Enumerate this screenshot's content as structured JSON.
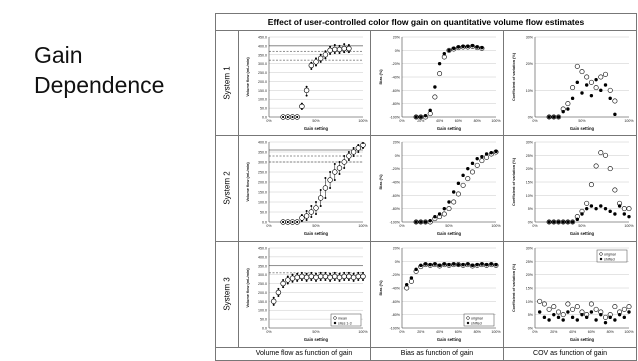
{
  "slide": {
    "title_line1": "Gain",
    "title_line2": "Dependence"
  },
  "figure": {
    "title": "Effect of user-controlled color flow gain on quantitative volume flow estimates",
    "rows": [
      "System 1",
      "System 2",
      "System 3"
    ],
    "columns": [
      "Volume flow as function of gain",
      "Bias as function of gain",
      "COV as function of gain"
    ]
  },
  "chart_data": [
    {
      "id": "s1-volume",
      "type": "scatter",
      "system": "System 1",
      "xlabel": "Gain setting",
      "ylabel": "Volume flow (mL/min)",
      "xlim": [
        0,
        100
      ],
      "xticks": [
        "0%",
        "50%",
        "100%"
      ],
      "ylim": [
        0,
        450
      ],
      "yticks": [
        "0.0",
        "50.0",
        "100.0",
        "150.0",
        "200.0",
        "250.0",
        "300.0",
        "350.0",
        "400.0",
        "450.0"
      ],
      "ref_lines": [
        400,
        370,
        320
      ],
      "x": [
        15,
        20,
        25,
        30,
        35,
        40,
        45,
        50,
        55,
        60,
        65,
        70,
        75,
        80,
        85
      ],
      "series": [
        {
          "name": "mean",
          "values": [
            0,
            0,
            0,
            0,
            60,
            150,
            290,
            310,
            330,
            350,
            375,
            380,
            380,
            385,
            385
          ]
        },
        {
          "name": "sites 1-3",
          "values": [
            0,
            0,
            0,
            0,
            45,
            120,
            270,
            290,
            310,
            330,
            355,
            360,
            360,
            365,
            365
          ]
        },
        {
          "name": "sites 1-3",
          "values": [
            0,
            0,
            0,
            0,
            75,
            170,
            305,
            330,
            350,
            370,
            395,
            405,
            400,
            410,
            405
          ]
        }
      ]
    },
    {
      "id": "s1-bias",
      "type": "scatter",
      "system": "System 1",
      "xlabel": "Gain setting",
      "ylabel": "Bias (%)",
      "xlim": [
        0,
        100
      ],
      "xticks": [
        "0%",
        "20%",
        "40%",
        "60%",
        "80%",
        "100%"
      ],
      "ylim": [
        -100,
        20
      ],
      "yticks": [
        "-100%",
        "-80%",
        "-60%",
        "-40%",
        "-20%",
        "0%",
        "20%"
      ],
      "x": [
        15,
        20,
        25,
        30,
        35,
        40,
        45,
        50,
        55,
        60,
        65,
        70,
        75,
        80,
        85
      ],
      "series": [
        {
          "name": "original",
          "values": [
            -100,
            -100,
            -100,
            -95,
            -70,
            -35,
            -10,
            0,
            2,
            4,
            5,
            5,
            6,
            4,
            3
          ]
        },
        {
          "name": "shifted",
          "values": [
            -100,
            -100,
            -98,
            -90,
            -55,
            -20,
            -5,
            0,
            3,
            5,
            6,
            6,
            7,
            5,
            4
          ]
        }
      ]
    },
    {
      "id": "s1-cov",
      "type": "scatter",
      "system": "System 1",
      "xlabel": "Gain setting",
      "ylabel": "Coefficient of variation (%)",
      "xlim": [
        0,
        100
      ],
      "xticks": [
        "0%",
        "50%",
        "100%"
      ],
      "ylim": [
        0,
        30
      ],
      "yticks": [
        "0%",
        "10%",
        "20%",
        "30%"
      ],
      "x": [
        15,
        20,
        25,
        30,
        35,
        40,
        45,
        50,
        55,
        60,
        65,
        70,
        75,
        80,
        85
      ],
      "series": [
        {
          "name": "original",
          "values": [
            0,
            0,
            0,
            3,
            5,
            11,
            19,
            17,
            15,
            13,
            11,
            15,
            16,
            10,
            6
          ]
        },
        {
          "name": "shifted",
          "values": [
            0,
            0,
            0,
            2,
            3,
            7,
            13,
            9,
            12,
            8,
            14,
            10,
            12,
            7,
            1
          ]
        }
      ]
    },
    {
      "id": "s2-volume",
      "type": "scatter",
      "system": "System 2",
      "xlabel": "Gain setting",
      "ylabel": "Volume flow (mL/min)",
      "xlim": [
        0,
        100
      ],
      "xticks": [
        "0%",
        "50%",
        "100%"
      ],
      "ylim": [
        0,
        400
      ],
      "yticks": [
        "0.0",
        "50.0",
        "100.0",
        "150.0",
        "200.0",
        "250.0",
        "300.0",
        "350.0",
        "400.0"
      ],
      "ref_lines": [
        360,
        330,
        300
      ],
      "x": [
        15,
        20,
        25,
        30,
        35,
        40,
        45,
        50,
        55,
        60,
        65,
        70,
        75,
        80,
        85,
        90,
        95,
        100
      ],
      "series": [
        {
          "name": "mean",
          "values": [
            0,
            0,
            0,
            0,
            20,
            30,
            50,
            70,
            120,
            170,
            210,
            250,
            270,
            300,
            330,
            350,
            370,
            385
          ]
        },
        {
          "name": "sites 1-3",
          "values": [
            0,
            0,
            0,
            0,
            5,
            10,
            25,
            40,
            80,
            120,
            170,
            210,
            240,
            270,
            310,
            330,
            350,
            370
          ]
        },
        {
          "name": "sites 1-3",
          "values": [
            0,
            0,
            0,
            0,
            35,
            55,
            80,
            100,
            160,
            220,
            250,
            290,
            300,
            330,
            350,
            370,
            385,
            395
          ]
        }
      ]
    },
    {
      "id": "s2-bias",
      "type": "scatter",
      "system": "System 2",
      "xlabel": "Gain setting",
      "ylabel": "Bias (%)",
      "xlim": [
        0,
        100
      ],
      "xticks": [
        "0%",
        "50%",
        "100%"
      ],
      "ylim": [
        -100,
        20
      ],
      "yticks": [
        "-100%",
        "-80%",
        "-60%",
        "-40%",
        "-20%",
        "0%",
        "20%"
      ],
      "x": [
        15,
        20,
        25,
        30,
        35,
        40,
        45,
        50,
        55,
        60,
        65,
        70,
        75,
        80,
        85,
        90,
        95,
        100
      ],
      "series": [
        {
          "name": "original",
          "values": [
            -100,
            -100,
            -100,
            -100,
            -95,
            -92,
            -88,
            -80,
            -70,
            -58,
            -45,
            -35,
            -25,
            -15,
            -8,
            -3,
            2,
            5
          ]
        },
        {
          "name": "shifted",
          "values": [
            -100,
            -100,
            -100,
            -98,
            -92,
            -88,
            -80,
            -70,
            -55,
            -42,
            -30,
            -20,
            -12,
            -5,
            -2,
            2,
            4,
            6
          ]
        }
      ]
    },
    {
      "id": "s2-cov",
      "type": "scatter",
      "system": "System 2",
      "xlabel": "Gain setting",
      "ylabel": "Coefficient of variation (%)",
      "xlim": [
        0,
        100
      ],
      "xticks": [
        "0%",
        "50%",
        "100%"
      ],
      "ylim": [
        0,
        30
      ],
      "yticks": [
        "0%",
        "5%",
        "10%",
        "15%",
        "20%",
        "25%",
        "30%"
      ],
      "x": [
        15,
        20,
        25,
        30,
        35,
        40,
        45,
        50,
        55,
        60,
        65,
        70,
        75,
        80,
        85,
        90,
        95,
        100
      ],
      "series": [
        {
          "name": "original",
          "values": [
            0,
            0,
            0,
            0,
            0,
            0,
            2,
            4,
            7,
            14,
            21,
            26,
            25,
            20,
            12,
            7,
            5,
            5
          ]
        },
        {
          "name": "shifted",
          "values": [
            0,
            0,
            0,
            0,
            0,
            0,
            1,
            3,
            5,
            6,
            5,
            6,
            5,
            4,
            3,
            6,
            3,
            2
          ]
        }
      ]
    },
    {
      "id": "s3-volume",
      "type": "scatter",
      "system": "System 3",
      "xlabel": "Gain setting",
      "ylabel": "Volume flow (mL/min)",
      "xlim": [
        0,
        100
      ],
      "xticks": [
        "0%",
        "50%",
        "100%"
      ],
      "ylim": [
        0,
        450
      ],
      "yticks": [
        "0.0",
        "50.0",
        "100.0",
        "150.0",
        "200.0",
        "250.0",
        "300.0",
        "350.0",
        "400.0",
        "450.0"
      ],
      "ref_lines": [
        350,
        310
      ],
      "legend": [
        "mean",
        "sites 1-3"
      ],
      "legend_position": "bottom-right",
      "x": [
        5,
        10,
        15,
        20,
        25,
        30,
        35,
        40,
        45,
        50,
        55,
        60,
        65,
        70,
        75,
        80,
        85,
        90,
        95,
        100
      ],
      "series": [
        {
          "name": "mean",
          "values": [
            150,
            200,
            250,
            270,
            280,
            285,
            290,
            285,
            290,
            285,
            290,
            290,
            285,
            290,
            285,
            290,
            290,
            285,
            290,
            290
          ]
        },
        {
          "name": "sites 1-3",
          "values": [
            130,
            180,
            230,
            250,
            260,
            265,
            270,
            265,
            270,
            265,
            270,
            270,
            265,
            270,
            265,
            270,
            270,
            265,
            270,
            270
          ]
        },
        {
          "name": "sites 1-3",
          "values": [
            170,
            220,
            270,
            290,
            300,
            305,
            310,
            305,
            310,
            305,
            310,
            310,
            305,
            310,
            305,
            310,
            310,
            305,
            310,
            310
          ]
        }
      ]
    },
    {
      "id": "s3-bias",
      "type": "scatter",
      "system": "System 3",
      "xlabel": "Gain setting",
      "ylabel": "Bias (%)",
      "xlim": [
        0,
        100
      ],
      "xticks": [
        "0%",
        "20%",
        "40%",
        "60%",
        "80%",
        "100%"
      ],
      "ylim": [
        -100,
        20
      ],
      "yticks": [
        "-100%",
        "-80%",
        "-60%",
        "-40%",
        "-20%",
        "0%",
        "20%"
      ],
      "legend": [
        "original",
        "shifted"
      ],
      "legend_position": "bottom-right",
      "x": [
        5,
        10,
        15,
        20,
        25,
        30,
        35,
        40,
        45,
        50,
        55,
        60,
        65,
        70,
        75,
        80,
        85,
        90,
        95,
        100
      ],
      "series": [
        {
          "name": "original",
          "values": [
            -40,
            -30,
            -15,
            -8,
            -5,
            -6,
            -5,
            -7,
            -5,
            -6,
            -5,
            -5,
            -6,
            -5,
            -7,
            -6,
            -5,
            -6,
            -5,
            -6
          ]
        },
        {
          "name": "shifted",
          "values": [
            -35,
            -25,
            -12,
            -6,
            -4,
            -5,
            -4,
            -6,
            -4,
            -5,
            -4,
            -5,
            -5,
            -4,
            -6,
            -5,
            -4,
            -5,
            -4,
            -5
          ]
        }
      ]
    },
    {
      "id": "s3-cov",
      "type": "scatter",
      "system": "System 3",
      "xlabel": "Gain setting",
      "ylabel": "Coefficient of variation (%)",
      "xlim": [
        0,
        100
      ],
      "xticks": [
        "0%",
        "20%",
        "40%",
        "60%",
        "80%",
        "100%"
      ],
      "ylim": [
        0,
        30
      ],
      "yticks": [
        "0%",
        "5%",
        "10%",
        "15%",
        "20%",
        "25%",
        "30%"
      ],
      "legend": [
        "original",
        "shifted"
      ],
      "legend_position": "top-right",
      "x": [
        5,
        10,
        15,
        20,
        25,
        30,
        35,
        40,
        45,
        50,
        55,
        60,
        65,
        70,
        75,
        80,
        85,
        90,
        95,
        100
      ],
      "series": [
        {
          "name": "original",
          "values": [
            10,
            9,
            7,
            8,
            6,
            5,
            9,
            7,
            8,
            6,
            5,
            9,
            7,
            6,
            4,
            5,
            8,
            6,
            7,
            8
          ]
        },
        {
          "name": "shifted",
          "values": [
            6,
            4,
            3,
            5,
            4,
            3,
            6,
            4,
            3,
            5,
            4,
            6,
            3,
            5,
            2,
            4,
            3,
            5,
            4,
            6
          ]
        }
      ]
    }
  ]
}
